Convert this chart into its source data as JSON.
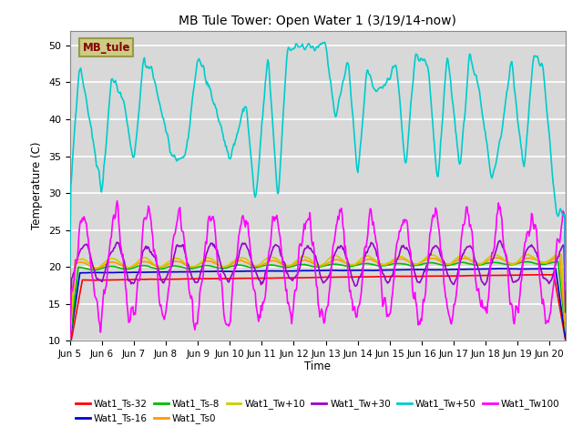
{
  "title": "MB Tule Tower: Open Water 1 (3/19/14-now)",
  "xlabel": "Time",
  "ylabel": "Temperature (C)",
  "ylim": [
    10,
    52
  ],
  "yticks": [
    10,
    15,
    20,
    25,
    30,
    35,
    40,
    45,
    50
  ],
  "xlim": [
    0,
    15.5
  ],
  "xtick_positions": [
    0,
    1,
    2,
    3,
    4,
    5,
    6,
    7,
    8,
    9,
    10,
    11,
    12,
    13,
    14,
    15
  ],
  "xtick_labels": [
    "Jun 5",
    "Jun 6",
    "Jun 7",
    "Jun 8",
    "Jun 9",
    "Jun 10",
    "Jun 11",
    "Jun 12",
    "Jun 13",
    "Jun 14",
    "Jun 15",
    "Jun 16",
    "Jun 17",
    "Jun 18",
    "Jun 19",
    "Jun 20"
  ],
  "bg_color": "#d8d8d8",
  "grid_color": "#ffffff",
  "series": {
    "Wat1_Ts-32": {
      "color": "#ff0000",
      "lw": 1.2
    },
    "Wat1_Ts-16": {
      "color": "#0000cc",
      "lw": 1.2
    },
    "Wat1_Ts-8": {
      "color": "#00bb00",
      "lw": 1.2
    },
    "Wat1_Ts0": {
      "color": "#ff9900",
      "lw": 1.2
    },
    "Wat1_Tw+10": {
      "color": "#cccc00",
      "lw": 1.2
    },
    "Wat1_Tw+30": {
      "color": "#9900cc",
      "lw": 1.2
    },
    "Wat1_Tw+50": {
      "color": "#00cccc",
      "lw": 1.2
    },
    "Wat1_Tw100": {
      "color": "#ff00ff",
      "lw": 1.2
    }
  },
  "legend_label": "MB_tule",
  "legend_label_color": "#880000",
  "legend_box_facecolor": "#cccc88",
  "legend_box_edgecolor": "#999944"
}
